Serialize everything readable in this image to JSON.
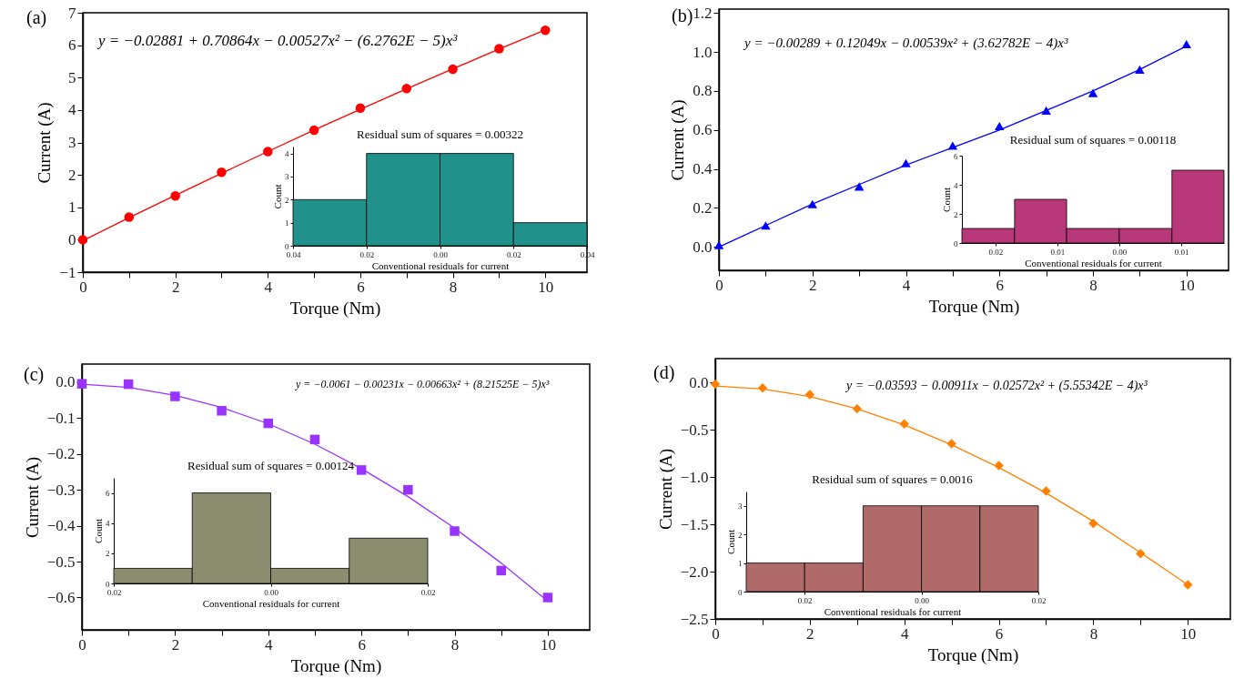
{
  "chart_data": [
    {
      "type": "scatter",
      "xlabel": "Torque (Nm)",
      "ylabel": "Current (A)",
      "annotations": [
        "(a)",
        "y = −0.02881 + 0.70864x − 0.00527x² − (6.2762E − 5)x³"
      ],
      "xlim": [
        0,
        10.9
      ],
      "xticks": [
        0,
        {
          "value": 1,
          "label": null
        },
        2,
        {
          "value": 3,
          "label": null
        },
        4,
        {
          "value": 5,
          "label": null
        },
        6,
        {
          "value": 7,
          "label": null
        },
        8,
        {
          "value": 9,
          "label": null
        },
        10
      ],
      "ylim": [
        -1,
        7
      ],
      "yticks": [
        {
          "value": -1,
          "label": "−1"
        },
        0,
        1,
        2,
        3,
        4,
        5,
        6,
        7
      ],
      "series": [
        {
          "type": "scatter",
          "marker": "circle",
          "color": "#ff0000",
          "x": [
            0,
            1,
            2,
            3,
            4,
            5,
            6,
            7,
            8,
            9,
            10
          ],
          "values": [
            0,
            0.7,
            1.35,
            2.08,
            2.72,
            3.38,
            4.06,
            4.66,
            5.26,
            5.89,
            6.46
          ]
        },
        {
          "type": "line",
          "color": "#ff0000",
          "x": [
            0,
            1,
            2,
            3,
            4,
            5,
            6,
            7,
            8,
            9,
            10
          ],
          "values": [
            -0.03,
            0.68,
            1.37,
            2.05,
            2.72,
            3.38,
            4.02,
            4.65,
            5.27,
            5.88,
            6.47
          ]
        }
      ]
    },
    {
      "type": "histogram",
      "title": "Residual sum of squares = 0.00322",
      "xlabel": "Conventional residuals for current",
      "ylabel": "Count",
      "bins": [
        -0.04,
        -0.02,
        0,
        0.02,
        0.04
      ],
      "values": [
        2,
        4,
        4,
        1
      ],
      "color": "#21918c",
      "xlim": [
        -0.04,
        0.04
      ],
      "xticks": [
        {
          "value": -0.04,
          "label": "0.04"
        },
        {
          "value": -0.02,
          "label": "0.02"
        },
        {
          "value": 0,
          "label": "0.00"
        },
        {
          "value": 0.02,
          "label": "0.02"
        },
        {
          "value": 0.04,
          "label": "0.04"
        }
      ],
      "ylim": [
        0,
        4.3
      ],
      "yticks": [
        0,
        1,
        2,
        3,
        4
      ]
    },
    {
      "type": "scatter",
      "xlabel": "Torque (Nm)",
      "ylabel": "Current (A)",
      "annotations": [
        "(b)",
        "y = −0.00289 + 0.12049x − 0.00539x² + (3.62782E − 4)x³"
      ],
      "xlim": [
        0,
        10.9
      ],
      "xticks": [
        0,
        {
          "value": 1,
          "label": null
        },
        2,
        {
          "value": 3,
          "label": null
        },
        4,
        {
          "value": 5,
          "label": null
        },
        6,
        {
          "value": 7,
          "label": null
        },
        8,
        {
          "value": 9,
          "label": null
        },
        10
      ],
      "ylim": [
        -0.12,
        1.22
      ],
      "yticks": [
        {
          "value": 0,
          "label": "0.0"
        },
        {
          "value": 0.2,
          "label": "0.2"
        },
        {
          "value": 0.4,
          "label": "0.4"
        },
        {
          "value": 0.6,
          "label": "0.6"
        },
        {
          "value": 0.8,
          "label": "0.8"
        },
        {
          "value": 1,
          "label": "1.0"
        },
        {
          "value": 1.2,
          "label": "1.2"
        }
      ],
      "series": [
        {
          "type": "scatter",
          "marker": "triangle",
          "color": "#0000ff",
          "x": [
            0,
            1,
            2,
            3,
            4,
            5,
            6,
            7,
            8,
            9,
            10
          ],
          "values": [
            0.01,
            0.11,
            0.22,
            0.31,
            0.43,
            0.52,
            0.62,
            0.7,
            0.79,
            0.91,
            1.04
          ]
        },
        {
          "type": "line",
          "color": "#0000ff",
          "x": [
            0,
            1,
            2,
            3,
            4,
            5,
            6,
            7,
            8,
            9,
            10
          ],
          "values": [
            0,
            0.11,
            0.22,
            0.32,
            0.42,
            0.51,
            0.6,
            0.7,
            0.8,
            0.91,
            1.03
          ]
        }
      ]
    },
    {
      "type": "histogram",
      "title": "Residual sum of squares = 0.00118",
      "xlabel": "Conventional residuals for current",
      "ylabel": "Count",
      "bins": [
        -0.0254,
        -0.0169,
        -0.0085,
        0,
        0.0085,
        0.0169
      ],
      "values": [
        1,
        3,
        1,
        1,
        5
      ],
      "color": "#b73779",
      "xlim": [
        -0.0254,
        0.0169
      ],
      "xticks": [
        {
          "value": -0.02,
          "label": "0.02"
        },
        {
          "value": -0.01,
          "label": "0.01"
        },
        {
          "value": 0,
          "label": "0.00"
        },
        {
          "value": 0.01,
          "label": "0.01"
        }
      ],
      "ylim": [
        0,
        6
      ],
      "yticks": [
        0,
        2,
        4,
        6
      ]
    },
    {
      "type": "scatter",
      "xlabel": "Torque (Nm)",
      "ylabel": "Current (A)",
      "annotations": [
        "(c)",
        "y = −0.0061 − 0.00231x − 0.00663x² + (8.21525E − 5)x³"
      ],
      "xlim": [
        0,
        10.9
      ],
      "xticks": [
        0,
        {
          "value": 1,
          "label": null
        },
        2,
        {
          "value": 3,
          "label": null
        },
        4,
        {
          "value": 5,
          "label": null
        },
        6,
        {
          "value": 7,
          "label": null
        },
        8,
        {
          "value": 9,
          "label": null
        },
        10
      ],
      "ylim": [
        -0.69,
        0.05
      ],
      "yticks": [
        {
          "value": 0,
          "label": "0.0"
        },
        {
          "value": -0.1,
          "label": "−0.1"
        },
        {
          "value": -0.2,
          "label": "−0.2"
        },
        {
          "value": -0.3,
          "label": "−0.3"
        },
        {
          "value": -0.4,
          "label": "−0.4"
        },
        {
          "value": -0.5,
          "label": "−0.5"
        },
        {
          "value": -0.6,
          "label": "−0.6"
        }
      ],
      "series": [
        {
          "type": "scatter",
          "marker": "square",
          "color": "#9933ff",
          "x": [
            0,
            1,
            2,
            3,
            4,
            5,
            6,
            7,
            8,
            9,
            10
          ],
          "values": [
            -0.005,
            -0.006,
            -0.04,
            -0.08,
            -0.115,
            -0.16,
            -0.245,
            -0.3,
            -0.415,
            -0.525,
            -0.6
          ]
        },
        {
          "type": "line",
          "color": "#9933ff",
          "x": [
            0,
            1,
            2,
            3,
            4,
            5,
            6,
            7,
            8,
            9,
            10
          ],
          "values": [
            -0.006,
            -0.015,
            -0.037,
            -0.071,
            -0.116,
            -0.173,
            -0.241,
            -0.319,
            -0.407,
            -0.504,
            -0.61
          ]
        }
      ]
    },
    {
      "type": "histogram",
      "title": "Residual sum of squares = 0.00124",
      "xlabel": "Conventional residuals for current",
      "ylabel": "Count",
      "bins": [
        -0.02,
        -0.01,
        0,
        0.01,
        0.02
      ],
      "values": [
        1,
        6,
        1,
        3
      ],
      "color": "#8c8c6e",
      "xlim": [
        -0.02,
        0.02
      ],
      "xticks": [
        {
          "value": -0.02,
          "label": "0.02"
        },
        {
          "value": 0,
          "label": "0.00"
        },
        {
          "value": 0.02,
          "label": "0.02"
        }
      ],
      "ylim": [
        0,
        7
      ],
      "yticks": [
        0,
        2,
        4,
        6
      ]
    },
    {
      "type": "scatter",
      "xlabel": "Torque (Nm)",
      "ylabel": "Current (A)",
      "annotations": [
        "(d)",
        "y = −0.03593 − 0.00911x − 0.02572x² + (5.55342E − 4)x³"
      ],
      "xlim": [
        0,
        10.9
      ],
      "xticks": [
        0,
        {
          "value": 1,
          "label": null
        },
        2,
        {
          "value": 3,
          "label": null
        },
        4,
        {
          "value": 5,
          "label": null
        },
        6,
        {
          "value": 7,
          "label": null
        },
        8,
        {
          "value": 9,
          "label": null
        },
        10
      ],
      "ylim": [
        -2.5,
        0.25
      ],
      "yticks": [
        {
          "value": 0,
          "label": "0.0"
        },
        {
          "value": -0.5,
          "label": "−0.5"
        },
        {
          "value": -1,
          "label": "−1.0"
        },
        {
          "value": -1.5,
          "label": "−1.5"
        },
        {
          "value": -2,
          "label": "−2.0"
        },
        {
          "value": -2.5,
          "label": "−2.5"
        }
      ],
      "series": [
        {
          "type": "scatter",
          "marker": "diamond",
          "color": "#ff8000",
          "x": [
            0,
            1,
            2,
            3,
            4,
            5,
            6,
            7,
            8,
            9,
            10
          ],
          "values": [
            -0.02,
            -0.06,
            -0.13,
            -0.28,
            -0.44,
            -0.65,
            -0.88,
            -1.15,
            -1.49,
            -1.81,
            -2.14
          ]
        },
        {
          "type": "line",
          "color": "#ff8000",
          "x": [
            0,
            1,
            2,
            3,
            4,
            5,
            6,
            7,
            8,
            9,
            10
          ],
          "values": [
            -0.04,
            -0.07,
            -0.15,
            -0.28,
            -0.45,
            -0.66,
            -0.9,
            -1.17,
            -1.47,
            -1.8,
            -2.14
          ]
        }
      ]
    },
    {
      "type": "histogram",
      "title": "Residual sum of squares = 0.0016",
      "xlabel": "Conventional residuals for current",
      "ylabel": "Count",
      "bins": [
        -0.03,
        -0.02,
        -0.01,
        0,
        0.01,
        0.02
      ],
      "values": [
        1,
        1,
        3,
        3,
        3
      ],
      "color": "#b06a6a",
      "xlim": [
        -0.03,
        0.02
      ],
      "xticks": [
        {
          "value": -0.02,
          "label": "0.02"
        },
        {
          "value": 0,
          "label": "0.00"
        },
        {
          "value": 0.02,
          "label": "0.02"
        }
      ],
      "ylim": [
        0,
        3.5
      ],
      "yticks": [
        0,
        1,
        2,
        3
      ]
    }
  ]
}
